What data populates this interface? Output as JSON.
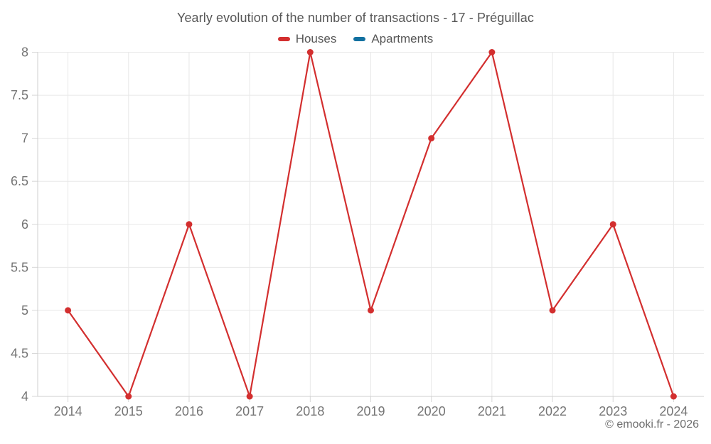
{
  "title": "Yearly evolution of the number of transactions - 17 - Préguillac",
  "footer": {
    "copyright": "© emooki.fr - 2026"
  },
  "chart_data": {
    "type": "line",
    "title": "Yearly evolution of the number of transactions - 17 - Préguillac",
    "categories": [
      "2014",
      "2015",
      "2016",
      "2017",
      "2018",
      "2019",
      "2020",
      "2021",
      "2022",
      "2023",
      "2024"
    ],
    "series": [
      {
        "name": "Houses",
        "color": "#d32f2f",
        "values": [
          5,
          4,
          6,
          4,
          8,
          5,
          7,
          8,
          5,
          6,
          4
        ]
      },
      {
        "name": "Apartments",
        "color": "#1270a0",
        "values": []
      }
    ],
    "xlabel": "",
    "ylabel": "",
    "ylim": [
      4,
      8
    ],
    "ytick_step": 0.5,
    "ytick_labels": [
      "4",
      "4.5",
      "5",
      "5.5",
      "6",
      "6.5",
      "7",
      "7.5",
      "8"
    ],
    "grid": true,
    "legend_position": "top",
    "marker": "circle"
  },
  "colors": {
    "houses": "#d32f2f",
    "apartments": "#1270a0",
    "gridline": "#e8e8e8",
    "axis_line": "#cfcfcf",
    "tick": "#d6d6d6",
    "axis_label_text": "#757575",
    "title_text": "#575757"
  }
}
